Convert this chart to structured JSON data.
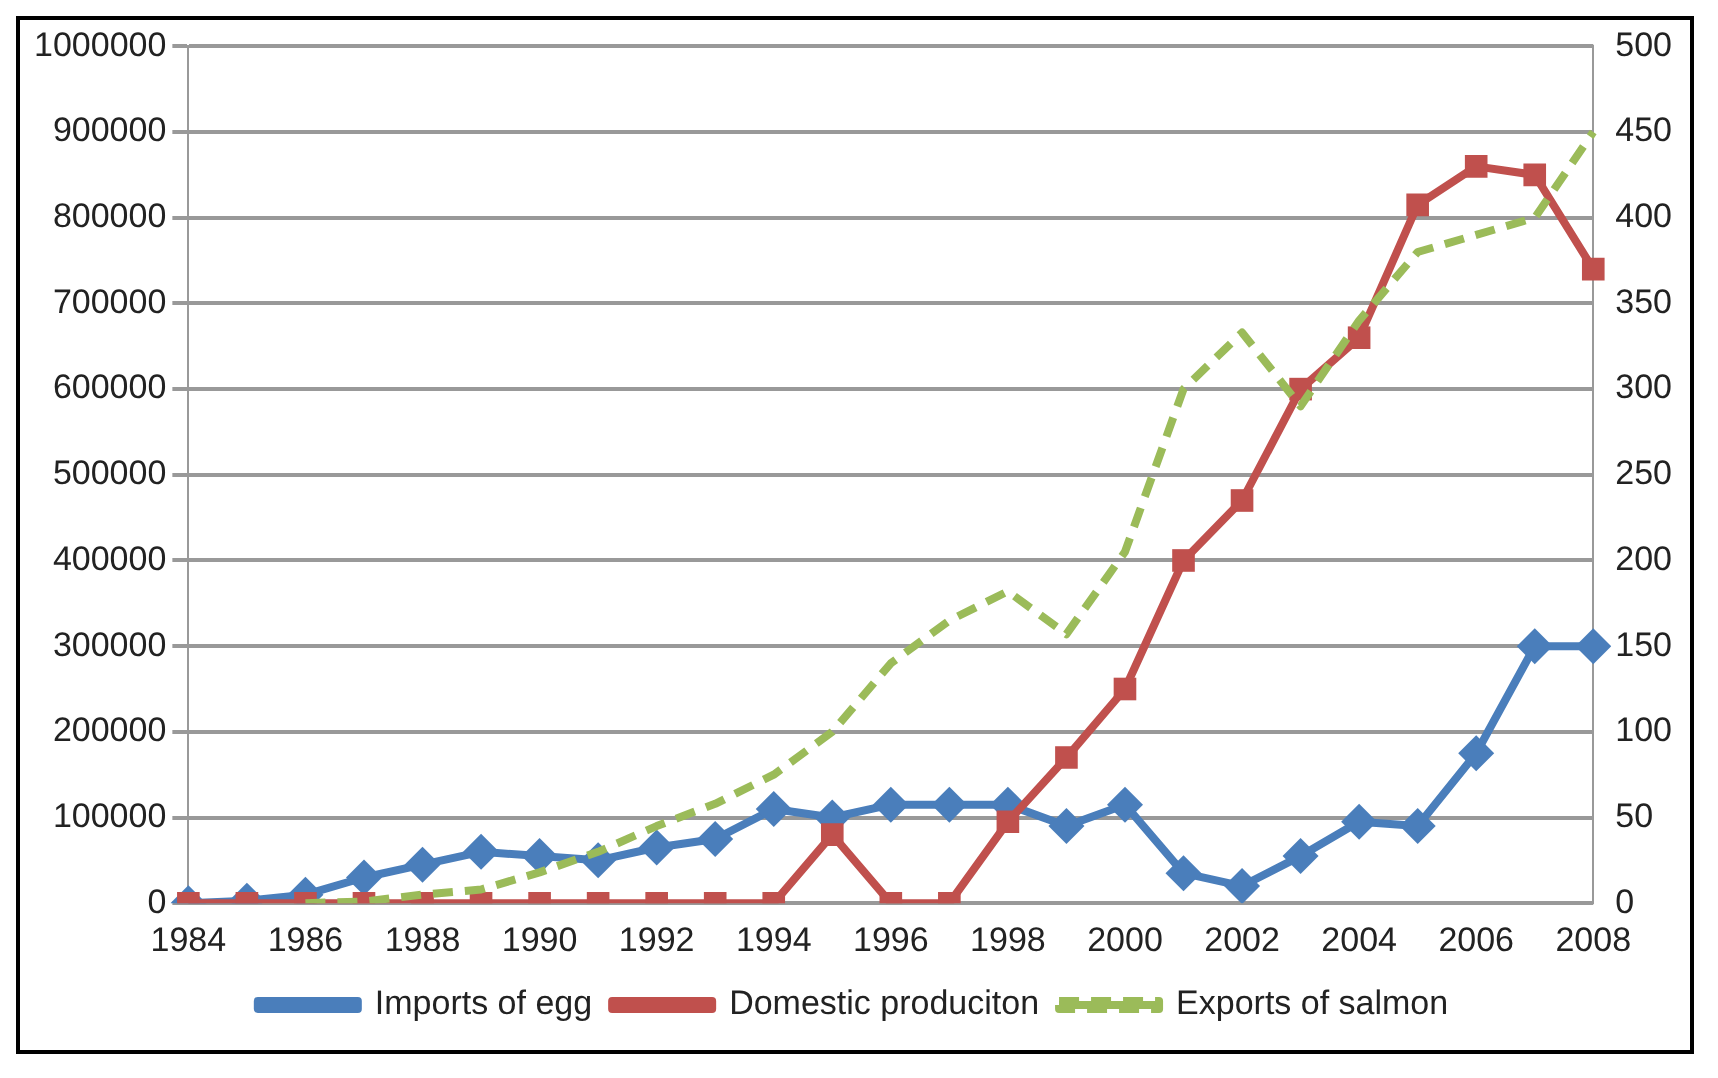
{
  "chart_data": {
    "type": "line",
    "categories": [
      "1984",
      null,
      "1986",
      null,
      "1988",
      null,
      "1990",
      null,
      "1992",
      null,
      "1994",
      null,
      "1996",
      null,
      "1998",
      null,
      "2000",
      null,
      "2002",
      null,
      "2004",
      null,
      "2006",
      null,
      "2008"
    ],
    "series": [
      {
        "name": "Imports of egg",
        "color": "#4a7ebb",
        "marker": "diamond",
        "line_style": "solid",
        "values": [
          0,
          3000,
          10000,
          30000,
          45000,
          60000,
          55000,
          50000,
          65000,
          75000,
          110000,
          100000,
          115000,
          115000,
          115000,
          90000,
          115000,
          35000,
          20000,
          55000,
          95000,
          90000,
          175000,
          300000,
          300000
        ]
      },
      {
        "name": "Domestic produciton",
        "color": "#c0504d",
        "marker": "square",
        "line_style": "solid",
        "values": [
          0,
          0,
          0,
          0,
          0,
          0,
          0,
          0,
          0,
          0,
          0,
          80000,
          0,
          0,
          95000,
          170000,
          250000,
          400000,
          470000,
          600000,
          660000,
          815000,
          860000,
          850000,
          740000
        ]
      },
      {
        "name": "Exports of salmon",
        "color": "#9bbb59",
        "marker": "none",
        "line_style": "dashed",
        "axis": "y2",
        "values": [
          null,
          null,
          0,
          1,
          5,
          8,
          18,
          30,
          45,
          58,
          75,
          100,
          140,
          165,
          182,
          157,
          205,
          300,
          333,
          290,
          340,
          380,
          390,
          400,
          450
        ]
      }
    ],
    "ylim": [
      0,
      1000000
    ],
    "yticks": [
      0,
      100000,
      200000,
      300000,
      400000,
      500000,
      600000,
      700000,
      800000,
      900000,
      1000000
    ],
    "y2lim": [
      0,
      500
    ],
    "y2ticks": [
      0,
      50,
      100,
      150,
      200,
      250,
      300,
      350,
      400,
      450,
      500
    ],
    "grid": "y",
    "legend": "bottom"
  }
}
